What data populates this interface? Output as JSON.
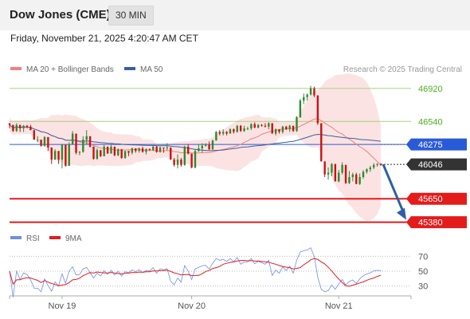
{
  "header": {
    "instrument": "Dow Jones (CME)",
    "timeframe": "30 MIN"
  },
  "datetime": "Friday, November 21, 2025 4:20:47 AM CET",
  "legend": {
    "ma20_label": "MA 20 + Bollinger Bands",
    "ma50_label": "MA 50",
    "copyright": "Research © 2025 Trading Central"
  },
  "rsi_legend": {
    "rsi_label": "RSI",
    "ma_label": "9MA"
  },
  "colors": {
    "up": "#2e8b2e",
    "down": "#c81414",
    "ma20": "#f08080",
    "ma50": "#3a5f9e",
    "band_fill": "#fbd9d9",
    "green_level": "#a8d080",
    "blue_level": "#2a5bd7",
    "red_level": "#e41b1b",
    "current": "#333333",
    "rsi": "#6f8fe0",
    "rsi_ma": "#e41b1b"
  },
  "chart_data": [
    {
      "type": "candlestick",
      "series": "Dow Jones (CME) 30 MIN",
      "ylim": [
        45340,
        47020
      ],
      "x_ticks": [
        "Nov 19",
        "Nov 20",
        "Nov 21"
      ],
      "levels": [
        {
          "value": 46920,
          "label": "46920",
          "kind": "resistance"
        },
        {
          "value": 46540,
          "label": "46540",
          "kind": "resistance"
        },
        {
          "value": 46275,
          "label": "46275",
          "kind": "pivot"
        },
        {
          "value": 46046,
          "label": "46046",
          "kind": "last"
        },
        {
          "value": 45650,
          "label": "45650",
          "kind": "support"
        },
        {
          "value": 45380,
          "label": "45380",
          "kind": "support"
        }
      ],
      "target": {
        "from": 46046,
        "to": 45380
      },
      "ohlc": [
        [
          46520,
          46520,
          46460,
          46500
        ],
        [
          46500,
          46500,
          46420,
          46430
        ],
        [
          46430,
          46520,
          46420,
          46500
        ],
        [
          46500,
          46500,
          46420,
          46460
        ],
        [
          46460,
          46500,
          46420,
          46490
        ],
        [
          46490,
          46500,
          46460,
          46480
        ],
        [
          46480,
          46500,
          46440,
          46440
        ],
        [
          46440,
          46440,
          46330,
          46330
        ],
        [
          46330,
          46370,
          46300,
          46330
        ],
        [
          46330,
          46330,
          46250,
          46260
        ],
        [
          46260,
          46370,
          46250,
          46360
        ],
        [
          46360,
          46360,
          46200,
          46240
        ],
        [
          46240,
          46240,
          46050,
          46100
        ],
        [
          46100,
          46220,
          46100,
          46200
        ],
        [
          46200,
          46200,
          46050,
          46100
        ],
        [
          46100,
          46280,
          46000,
          46270
        ],
        [
          46270,
          46270,
          46020,
          46030
        ],
        [
          46030,
          46300,
          46030,
          46280
        ],
        [
          46280,
          46430,
          46280,
          46400
        ],
        [
          46400,
          46400,
          46160,
          46180
        ],
        [
          46180,
          46200,
          46150,
          46190
        ],
        [
          46190,
          46370,
          46180,
          46330
        ],
        [
          46330,
          46440,
          46280,
          46370
        ],
        [
          46370,
          46370,
          46240,
          46250
        ],
        [
          46250,
          46250,
          46100,
          46110
        ],
        [
          46110,
          46230,
          46100,
          46210
        ],
        [
          46210,
          46210,
          46130,
          46140
        ],
        [
          46140,
          46270,
          46140,
          46250
        ],
        [
          46250,
          46250,
          46170,
          46170
        ],
        [
          46170,
          46270,
          46170,
          46250
        ],
        [
          46250,
          46250,
          46140,
          46150
        ],
        [
          46150,
          46230,
          46140,
          46220
        ],
        [
          46220,
          46220,
          46110,
          46120
        ],
        [
          46120,
          46200,
          46110,
          46200
        ],
        [
          46200,
          46200,
          46140,
          46180
        ],
        [
          46180,
          46240,
          46160,
          46230
        ],
        [
          46230,
          46230,
          46180,
          46200
        ],
        [
          46200,
          46240,
          46180,
          46230
        ],
        [
          46230,
          46250,
          46180,
          46190
        ],
        [
          46190,
          46230,
          46160,
          46220
        ],
        [
          46220,
          46230,
          46200,
          46210
        ],
        [
          46210,
          46260,
          46200,
          46250
        ],
        [
          46250,
          46260,
          46180,
          46190
        ],
        [
          46190,
          46250,
          46180,
          46240
        ],
        [
          46240,
          46240,
          46180,
          46230
        ],
        [
          46230,
          46290,
          46210,
          46240
        ],
        [
          46240,
          46240,
          46100,
          46100
        ],
        [
          46100,
          46120,
          46020,
          46040
        ],
        [
          46040,
          46160,
          46000,
          46100
        ],
        [
          46100,
          46120,
          46020,
          46040
        ],
        [
          46040,
          46260,
          46030,
          46250
        ],
        [
          46250,
          46280,
          46160,
          46170
        ],
        [
          46170,
          46170,
          46000,
          46010
        ],
        [
          46010,
          46220,
          46000,
          46200
        ],
        [
          46200,
          46280,
          46190,
          46230
        ],
        [
          46230,
          46290,
          46180,
          46260
        ],
        [
          46260,
          46290,
          46250,
          46270
        ],
        [
          46270,
          46310,
          46210,
          46220
        ],
        [
          46220,
          46330,
          46210,
          46320
        ],
        [
          46320,
          46430,
          46320,
          46420
        ],
        [
          46420,
          46440,
          46380,
          46400
        ],
        [
          46400,
          46450,
          46380,
          46420
        ],
        [
          46420,
          46430,
          46380,
          46400
        ],
        [
          46400,
          46460,
          46400,
          46450
        ],
        [
          46450,
          46460,
          46400,
          46420
        ],
        [
          46420,
          46500,
          46410,
          46490
        ],
        [
          46490,
          46500,
          46420,
          46430
        ],
        [
          46430,
          46490,
          46420,
          46460
        ],
        [
          46460,
          46480,
          46440,
          46460
        ],
        [
          46460,
          46520,
          46440,
          46510
        ],
        [
          46510,
          46530,
          46460,
          46470
        ],
        [
          46470,
          46510,
          46460,
          46500
        ],
        [
          46500,
          46510,
          46480,
          46490
        ],
        [
          46490,
          46520,
          46470,
          46480
        ],
        [
          46480,
          46530,
          46450,
          46520
        ],
        [
          46520,
          46520,
          46400,
          46400
        ],
        [
          46400,
          46460,
          46380,
          46450
        ],
        [
          46450,
          46450,
          46400,
          46420
        ],
        [
          46420,
          46490,
          46400,
          46480
        ],
        [
          46480,
          46490,
          46440,
          46450
        ],
        [
          46450,
          46500,
          46420,
          46490
        ],
        [
          46490,
          46490,
          46420,
          46430
        ],
        [
          46430,
          46600,
          46420,
          46590
        ],
        [
          46590,
          46800,
          46580,
          46780
        ],
        [
          46780,
          46860,
          46740,
          46820
        ],
        [
          46820,
          46860,
          46780,
          46850
        ],
        [
          46850,
          46950,
          46840,
          46920
        ],
        [
          46920,
          46940,
          46820,
          46840
        ],
        [
          46840,
          46840,
          46500,
          46520
        ],
        [
          46520,
          46520,
          46080,
          46080
        ],
        [
          46080,
          46080,
          45900,
          45930
        ],
        [
          45930,
          46010,
          45870,
          45950
        ],
        [
          45950,
          46060,
          45910,
          46050
        ],
        [
          46050,
          46050,
          45850,
          45850
        ],
        [
          45850,
          45980,
          45840,
          45950
        ],
        [
          45950,
          46070,
          45930,
          46040
        ],
        [
          46040,
          46040,
          45820,
          45830
        ],
        [
          45830,
          45970,
          45820,
          45900
        ],
        [
          45900,
          45950,
          45850,
          45930
        ],
        [
          45930,
          45950,
          45820,
          45820
        ],
        [
          45820,
          45940,
          45810,
          45900
        ],
        [
          45900,
          45980,
          45880,
          45960
        ],
        [
          45960,
          46000,
          45940,
          45990
        ],
        [
          45990,
          46030,
          45960,
          46010
        ],
        [
          46010,
          46060,
          45990,
          46040
        ],
        [
          46040,
          46060,
          46020,
          46050
        ],
        [
          46050,
          46060,
          46030,
          46046
        ]
      ]
    },
    {
      "type": "line",
      "series": "RSI",
      "ylim": [
        20,
        80
      ],
      "y_ticks": [
        70,
        50,
        30
      ],
      "x_ticks": [
        "Nov 19",
        "Nov 20",
        "Nov 21"
      ]
    }
  ]
}
